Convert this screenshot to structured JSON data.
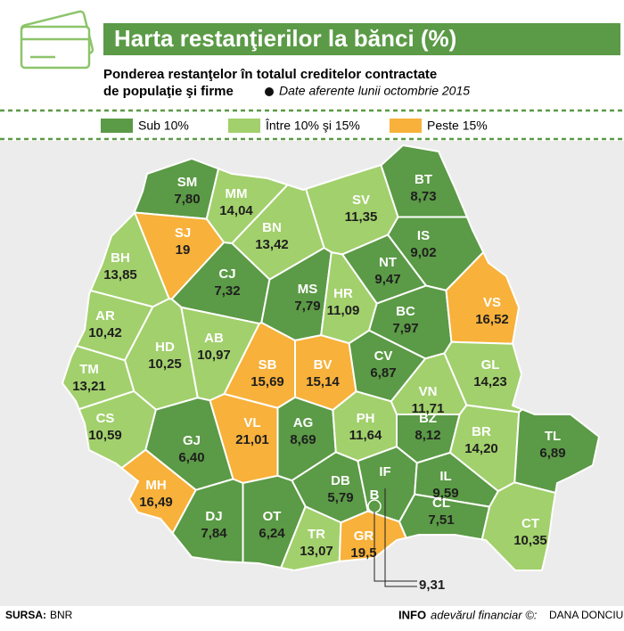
{
  "chart_data": {
    "type": "map",
    "title": "Harta restanţierilor la bănci (%)",
    "subtitle": [
      "Ponderea restanţelor în totalul creditelor contractate",
      "de populaţie şi firme"
    ],
    "note": "Date aferente lunii octombrie 2015",
    "legend": [
      {
        "name": "Sub 10%",
        "color": "#5b9a46"
      },
      {
        "name": "Între 10% şi 15%",
        "color": "#a2d06c"
      },
      {
        "name": "Peste 15%",
        "color": "#f8b13a"
      }
    ],
    "categories": [
      "SM",
      "MM",
      "SV",
      "BT",
      "SJ",
      "BN",
      "IS",
      "BH",
      "CJ",
      "MS",
      "NT",
      "HR",
      "BC",
      "VS",
      "AR",
      "HD",
      "AB",
      "SB",
      "BV",
      "CV",
      "VN",
      "GL",
      "TM",
      "CS",
      "GJ",
      "VL",
      "AG",
      "PH",
      "BZ",
      "BR",
      "TL",
      "MH",
      "DB",
      "IF",
      "IL",
      "DJ",
      "OT",
      "TR",
      "GR",
      "CL",
      "CT",
      "B"
    ],
    "values": [
      7.8,
      14.04,
      11.35,
      8.73,
      19,
      13.42,
      9.02,
      13.85,
      7.32,
      7.79,
      9.47,
      11.09,
      7.97,
      16.52,
      10.42,
      10.25,
      10.97,
      15.69,
      15.14,
      6.87,
      11.71,
      14.23,
      13.21,
      10.59,
      6.4,
      21.01,
      8.69,
      11.64,
      8.12,
      14.2,
      6.89,
      16.49,
      5.79,
      null,
      9.59,
      7.84,
      6.24,
      13.07,
      19.5,
      7.51,
      10.35,
      9.31
    ],
    "value_labels": [
      "7,80",
      "14,04",
      "11,35",
      "8,73",
      "19",
      "13,42",
      "9,02",
      "13,85",
      "7,32",
      "7,79",
      "9,47",
      "11,09",
      "7,97",
      "16,52",
      "10,42",
      "10,25",
      "10,97",
      "15,69",
      "15,14",
      "6,87",
      "11,71",
      "14,23",
      "13,21",
      "10,59",
      "6,40",
      "21,01",
      "8,69",
      "11,64",
      "8,12",
      "14,20",
      "6,89",
      "16,49",
      "5,79",
      null,
      "9,59",
      "7,84",
      "6,24",
      "13,07",
      "19,5",
      "7,51",
      "10,35",
      "9,31"
    ],
    "colors": [
      "#5b9a46",
      "#a2d06c",
      "#a2d06c",
      "#5b9a46",
      "#f8b13a",
      "#a2d06c",
      "#5b9a46",
      "#a2d06c",
      "#5b9a46",
      "#5b9a46",
      "#5b9a46",
      "#a2d06c",
      "#5b9a46",
      "#f8b13a",
      "#a2d06c",
      "#a2d06c",
      "#a2d06c",
      "#f8b13a",
      "#f8b13a",
      "#5b9a46",
      "#a2d06c",
      "#a2d06c",
      "#a2d06c",
      "#a2d06c",
      "#5b9a46",
      "#f8b13a",
      "#5b9a46",
      "#a2d06c",
      "#5b9a46",
      "#a2d06c",
      "#5b9a46",
      "#f8b13a",
      "#5b9a46",
      "#5b9a46",
      "#5b9a46",
      "#5b9a46",
      "#5b9a46",
      "#a2d06c",
      "#f8b13a",
      "#5b9a46",
      "#a2d06c",
      "#5b9a46"
    ],
    "source_label": "SURSA:",
    "source": "BNR",
    "credit_label": "INFO",
    "brand": "adevărul financiar ©:",
    "author": "DANA DONCIU"
  }
}
